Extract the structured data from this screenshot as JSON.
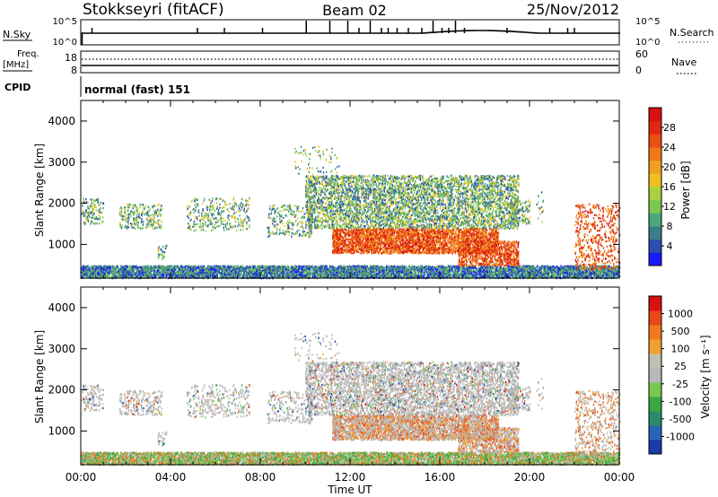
{
  "header": {
    "station": "Stokkseyri (fitACF)",
    "beam": "Beam 02",
    "date": "25/Nov/2012"
  },
  "top_panels": {
    "nsky_label": "N.Sky",
    "nsky_ticks": [
      "10^5",
      "10^0"
    ],
    "nsearch_label": "N.Search",
    "nsearch_ticks": [
      "10^5",
      "10^0"
    ],
    "freq_label_1": "Freq.",
    "freq_label_2": "[MHz]",
    "freq_ticks": [
      "18",
      "8"
    ],
    "nave_label": "Nave",
    "nave_ticks": [
      "60",
      "0"
    ],
    "cpid_label": "CPID",
    "cpid_value": "normal (fast) 151"
  },
  "colors": {
    "power_scale": [
      "#1a1aff",
      "#2a4fb0",
      "#3a7e8a",
      "#4aa87a",
      "#78c850",
      "#a8d040",
      "#f0c020",
      "#f0a020",
      "#f07818",
      "#e85010",
      "#e02810",
      "#d81010"
    ],
    "velocity_scale": [
      "#1a3aa8",
      "#2a64b8",
      "#2a8c6a",
      "#3aa840",
      "#78c850",
      "#b8b8b8",
      "#c0c0b0",
      "#f0a030",
      "#f07820",
      "#e84818",
      "#d81010"
    ]
  },
  "chart_data": [
    {
      "type": "heatmap",
      "title": "Power",
      "ylabel": "Slant Range [km]",
      "ylim": [
        180,
        4500
      ],
      "xlim_hours": [
        0,
        24
      ],
      "yticks": [
        "4000",
        "3000",
        "2000",
        "1000"
      ],
      "colorbar_label": "Power [dB]",
      "colorbar_ticks": [
        "28",
        "24",
        "20",
        "16",
        "12",
        "8",
        "4"
      ]
    },
    {
      "type": "heatmap",
      "title": "Velocity",
      "ylabel": "Slant Range [km]",
      "ylim": [
        180,
        4500
      ],
      "xlim_hours": [
        0,
        24
      ],
      "yticks": [
        "4000",
        "3000",
        "2000",
        "1000"
      ],
      "colorbar_label": "Velocity [m s⁻¹]",
      "colorbar_ticks": [
        "1000",
        "500",
        "100",
        "25",
        "-25",
        "-100",
        "-500",
        "-1000"
      ]
    }
  ],
  "x_axis": {
    "label": "Time UT",
    "ticks": [
      "00:00",
      "04:00",
      "08:00",
      "12:00",
      "16:00",
      "20:00",
      "00:00"
    ]
  }
}
